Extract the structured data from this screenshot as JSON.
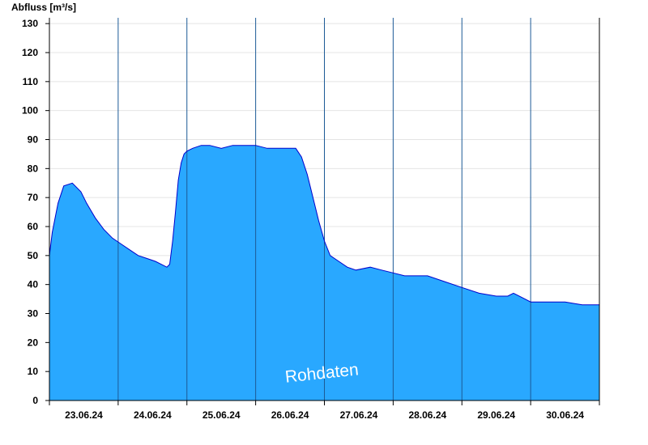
{
  "chart_data": {
    "type": "area",
    "title": "",
    "ylabel": "Abfluss [m³/s]",
    "xlabel": "",
    "watermark": "Rohdaten",
    "ylim": [
      0,
      132
    ],
    "yticks": [
      0,
      10,
      20,
      30,
      40,
      50,
      60,
      70,
      80,
      90,
      100,
      110,
      120,
      130
    ],
    "x_start": "22.06.24 12:00",
    "x_end": "30.06.24 12:00",
    "x_tick_labels": [
      "23.06.24",
      "24.06.24",
      "25.06.24",
      "26.06.24",
      "27.06.24",
      "28.06.24",
      "29.06.24",
      "30.06.24"
    ],
    "day_separators": [
      "23.06.24 12:00",
      "24.06.24 12:00",
      "25.06.24 12:00",
      "26.06.24 12:00",
      "27.06.24 12:00",
      "28.06.24 12:00",
      "29.06.24 12:00"
    ],
    "grid": true,
    "colors": {
      "fill": "#29a8ff",
      "line": "#0000cc"
    },
    "series": [
      {
        "x": [
          "22.06.24 12:00",
          "22.06.24 13:00",
          "22.06.24 15:00",
          "22.06.24 17:00",
          "22.06.24 20:00",
          "22.06.24 23:00",
          "23.06.24 01:00",
          "23.06.24 04:00",
          "23.06.24 07:00",
          "23.06.24 10:00",
          "23.06.24 13:00",
          "23.06.24 16:00",
          "23.06.24 19:00",
          "23.06.24 22:00",
          "24.06.24 01:00",
          "24.06.24 03:00",
          "24.06.24 05:00",
          "24.06.24 06:00",
          "24.06.24 07:00",
          "24.06.24 08:00",
          "24.06.24 09:00",
          "24.06.24 10:00",
          "24.06.24 11:00",
          "24.06.24 12:00",
          "24.06.24 14:00",
          "24.06.24 17:00",
          "24.06.24 20:00",
          "25.06.24 00:00",
          "25.06.24 04:00",
          "25.06.24 08:00",
          "25.06.24 12:00",
          "25.06.24 16:00",
          "25.06.24 20:00",
          "26.06.24 00:00",
          "26.06.24 02:00",
          "26.06.24 04:00",
          "26.06.24 06:00",
          "26.06.24 08:00",
          "26.06.24 10:00",
          "26.06.24 12:00",
          "26.06.24 14:00",
          "26.06.24 17:00",
          "26.06.24 20:00",
          "26.06.24 23:00",
          "27.06.24 04:00",
          "27.06.24 08:00",
          "27.06.24 12:00",
          "27.06.24 16:00",
          "27.06.24 20:00",
          "28.06.24 00:00",
          "28.06.24 06:00",
          "28.06.24 12:00",
          "28.06.24 18:00",
          "29.06.24 00:00",
          "29.06.24 04:00",
          "29.06.24 06:00",
          "29.06.24 10:00",
          "29.06.24 12:00",
          "29.06.24 18:00",
          "30.06.24 00:00",
          "30.06.24 06:00",
          "30.06.24 12:00"
        ],
        "y": [
          50,
          58,
          68,
          74,
          75,
          72,
          68,
          63,
          59,
          56,
          54,
          52,
          50,
          49,
          48,
          47,
          46,
          47,
          55,
          65,
          76,
          82,
          85,
          86,
          87,
          88,
          88,
          87,
          88,
          88,
          88,
          87,
          87,
          87,
          87,
          84,
          78,
          70,
          62,
          55,
          50,
          48,
          46,
          45,
          46,
          45,
          44,
          43,
          43,
          43,
          41,
          39,
          37,
          36,
          36,
          37,
          35,
          34,
          34,
          34,
          33,
          33
        ]
      }
    ]
  }
}
